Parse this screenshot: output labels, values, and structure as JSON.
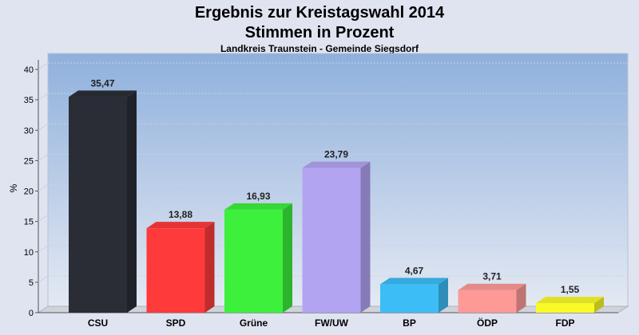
{
  "chart_data": {
    "type": "bar",
    "title": "Ergebnis zur Kreistagswahl 2014",
    "title_line2": "Stimmen in Prozent",
    "subtitle": "Landkreis Traunstein - Gemeinde Siegsdorf",
    "ylabel": "%",
    "xlabel": "",
    "ylim": [
      0,
      40
    ],
    "yticks": [
      0,
      5,
      10,
      15,
      20,
      25,
      30,
      35,
      40
    ],
    "grid": true,
    "legend": "none",
    "categories": [
      "CSU",
      "SPD",
      "Grüne",
      "FW/UW",
      "BP",
      "ÖDP",
      "FDP"
    ],
    "values": [
      35.47,
      13.88,
      16.93,
      23.79,
      4.67,
      3.71,
      1.55
    ],
    "value_labels": [
      "35,47",
      "13,88",
      "16,93",
      "23,79",
      "4,67",
      "3,71",
      "1,55"
    ],
    "colors": [
      "#2a2d36",
      "#ff3a3a",
      "#3cf03c",
      "#b3a4f2",
      "#3cbdf6",
      "#fd9a98",
      "#fafa28"
    ]
  }
}
